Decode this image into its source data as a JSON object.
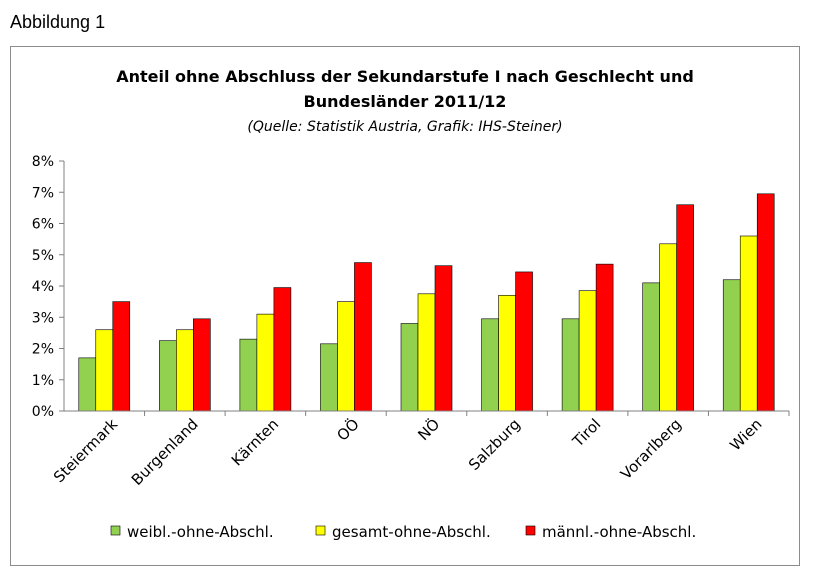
{
  "figure_label": "Abbildung 1",
  "chart_data": {
    "type": "bar",
    "title_line1": "Anteil ohne Abschluss der Sekundarstufe I nach Geschlecht und",
    "title_line2": "Bundesländer 2011/12",
    "subtitle": "(Quelle: Statistik Austria, Grafik: IHS-Steiner)",
    "xlabel": "",
    "ylabel": "",
    "ylim": [
      0,
      8
    ],
    "yticks": [
      0,
      1,
      2,
      3,
      4,
      5,
      6,
      7,
      8
    ],
    "ytick_labels": [
      "0%",
      "1%",
      "2%",
      "3%",
      "4%",
      "5%",
      "6%",
      "7%",
      "8%"
    ],
    "grid": false,
    "legend_position": "bottom",
    "categories": [
      "Steiermark",
      "Burgenland",
      "Kärnten",
      "OÖ",
      "NÖ",
      "Salzburg",
      "Tirol",
      "Vorarlberg",
      "Wien"
    ],
    "series": [
      {
        "name": "weibl.-ohne-Abschl.",
        "color": "#92d050",
        "values": [
          1.7,
          2.25,
          2.3,
          2.15,
          2.8,
          2.95,
          2.95,
          4.1,
          4.2
        ]
      },
      {
        "name": "gesamt-ohne-Abschl.",
        "color": "#ffff00",
        "values": [
          2.6,
          2.6,
          3.1,
          3.5,
          3.75,
          3.7,
          3.85,
          5.35,
          5.6
        ]
      },
      {
        "name": "männl.-ohne-Abschl.",
        "color": "#ff0000",
        "values": [
          3.5,
          2.95,
          3.95,
          4.75,
          4.65,
          4.45,
          4.7,
          6.6,
          6.95
        ]
      }
    ]
  }
}
